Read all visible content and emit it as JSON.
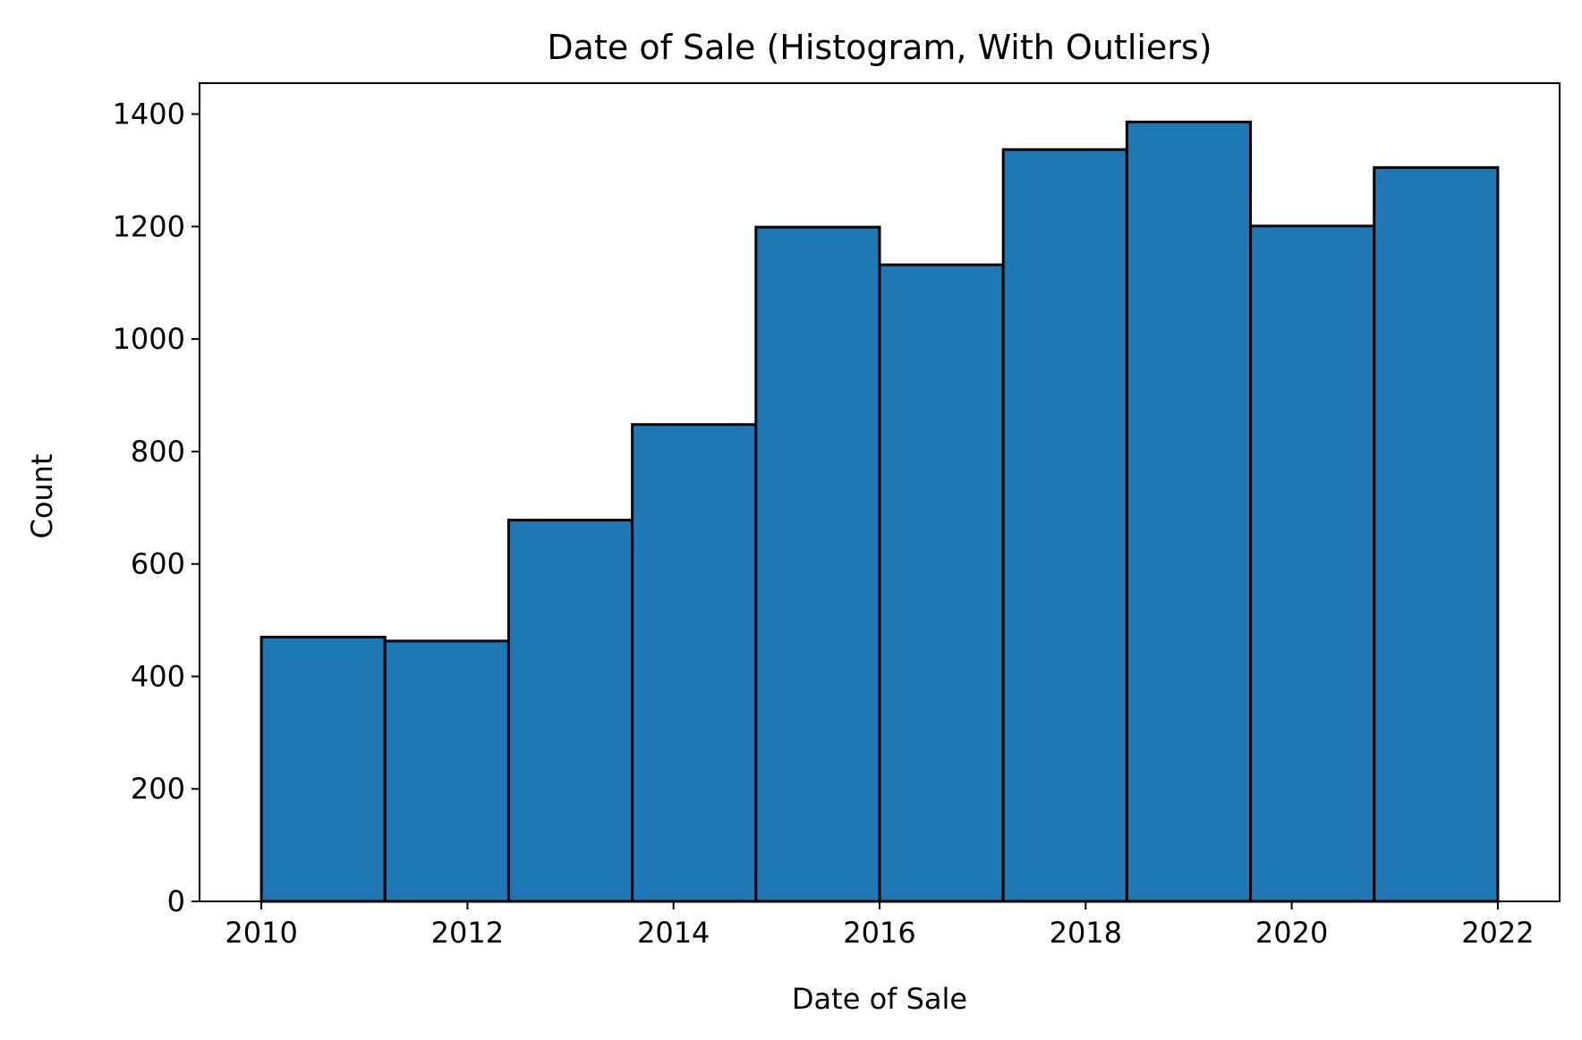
{
  "chart_data": {
    "type": "bar",
    "title": "Date of Sale (Histogram, With Outliers)",
    "xlabel": "Date of Sale",
    "ylabel": "Count",
    "bin_edges": [
      2010.0,
      2011.2,
      2012.4,
      2013.6,
      2014.8,
      2016.0,
      2017.2,
      2018.4,
      2019.6,
      2020.8,
      2022.0
    ],
    "values": [
      470,
      463,
      678,
      848,
      1199,
      1132,
      1337,
      1386,
      1201,
      1305
    ],
    "xlim": [
      2009.4,
      2022.6
    ],
    "ylim": [
      0,
      1455
    ],
    "xticks": [
      2010,
      2012,
      2014,
      2016,
      2018,
      2020,
      2022
    ],
    "xtick_labels": [
      "2010",
      "2012",
      "2014",
      "2016",
      "2018",
      "2020",
      "2022"
    ],
    "yticks": [
      0,
      200,
      400,
      600,
      800,
      1000,
      1200,
      1400
    ],
    "ytick_labels": [
      "0",
      "200",
      "400",
      "600",
      "800",
      "1000",
      "1200",
      "1400"
    ],
    "grid": false,
    "legend": "none",
    "bar_color": "#1f77b4",
    "edge_color": "#000000"
  }
}
